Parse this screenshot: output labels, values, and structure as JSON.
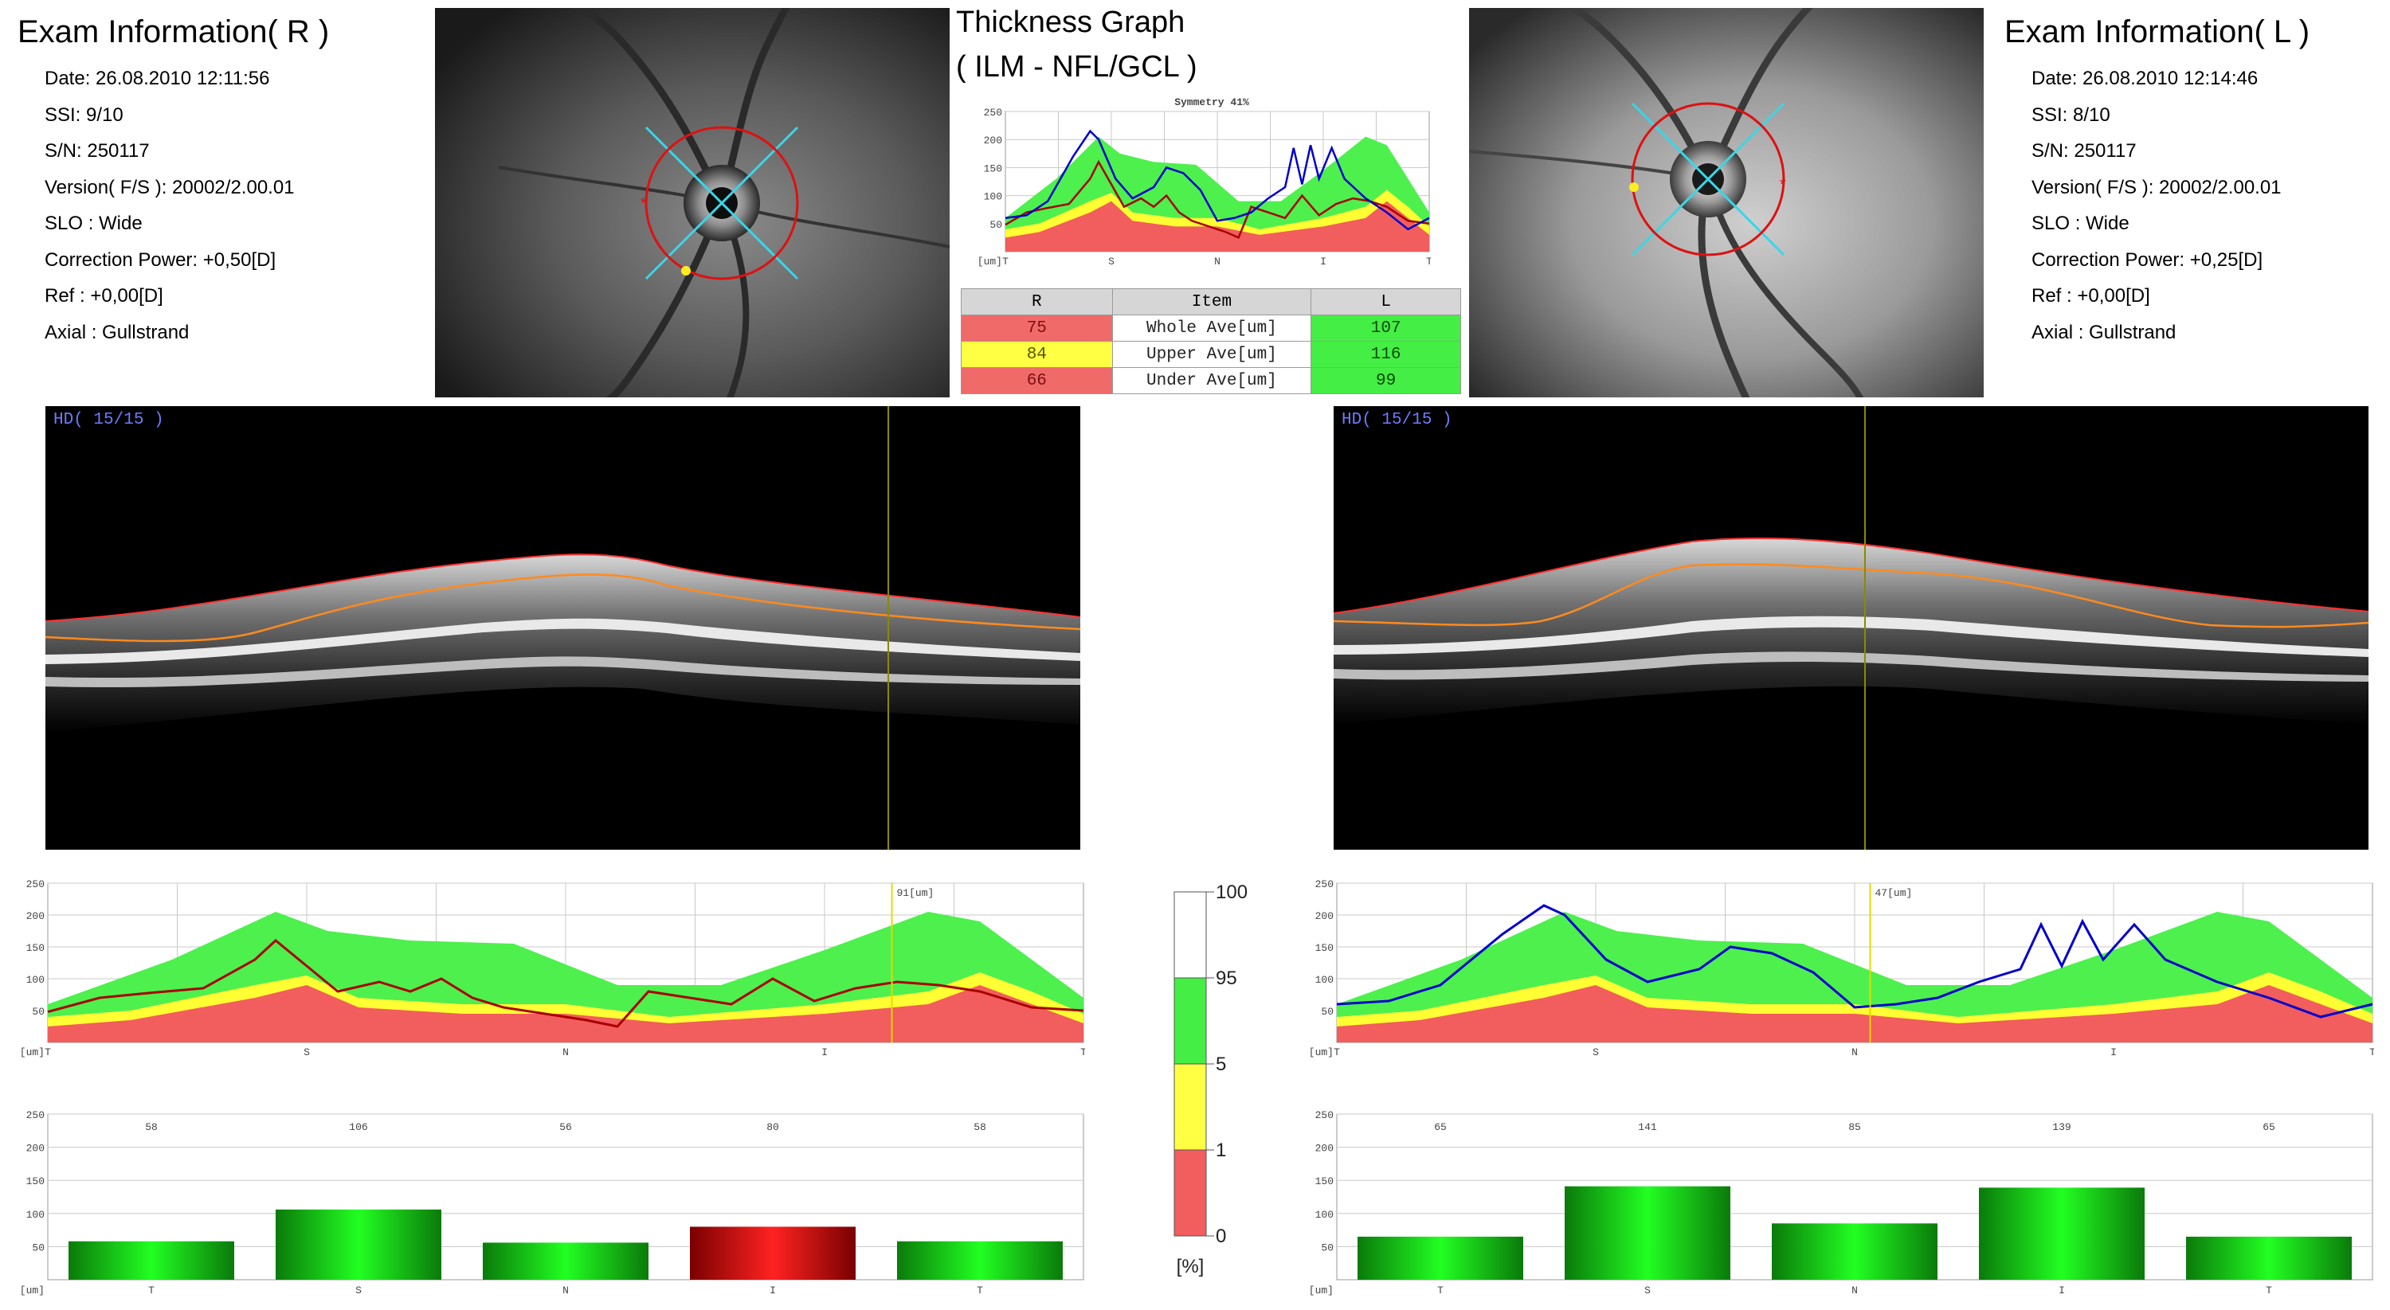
{
  "exam_right": {
    "title": "Exam Information( R )",
    "fields": [
      "Date: 26.08.2010 12:11:56",
      "SSI:  9/10",
      "S/N: 250117",
      "Version( F/S ): 20002/2.00.01",
      "SLO : Wide",
      "Correction Power: +0,50[D]",
      "Ref : +0,00[D]",
      "Axial : Gullstrand"
    ]
  },
  "exam_left": {
    "title": "Exam Information( L )",
    "fields": [
      "Date: 26.08.2010 12:14:46",
      "SSI:  8/10",
      "S/N: 250117",
      "Version( F/S ): 20002/2.00.01",
      "SLO : Wide",
      "Correction Power: +0,25[D]",
      "Ref : +0,00[D]",
      "Axial : Gullstrand"
    ]
  },
  "thickness_graph": {
    "title_line1": "Thickness Graph",
    "title_line2": "( ILM - NFL/GCL )",
    "symmetry": "Symmetry 41%",
    "y_ticks": [
      "250",
      "200",
      "150",
      "100",
      "50"
    ],
    "unit": "[um]",
    "x_ticks": [
      "T",
      "S",
      "N",
      "I",
      "T"
    ]
  },
  "summary_table": {
    "headers": [
      "R",
      "Item",
      "L"
    ],
    "rows": [
      {
        "r": "75",
        "item": "Whole Ave[um]",
        "l": "107",
        "r_color": "red"
      },
      {
        "r": "84",
        "item": "Upper Ave[um]",
        "l": "116",
        "r_color": "yellow"
      },
      {
        "r": "66",
        "item": "Under Ave[um]",
        "l": "99",
        "r_color": "red"
      }
    ]
  },
  "oct_right": {
    "label": "HD( 15/15 )"
  },
  "oct_left": {
    "label": "HD( 15/15 )"
  },
  "profile_right": {
    "y_ticks": [
      "250",
      "200",
      "150",
      "100",
      "50"
    ],
    "unit": "[um]",
    "x_ticks": [
      "T",
      "S",
      "N",
      "I",
      "T"
    ],
    "cursor_value": "91[um]",
    "line_color": "#aa0000"
  },
  "profile_left": {
    "y_ticks": [
      "250",
      "200",
      "150",
      "100",
      "50"
    ],
    "unit": "[um]",
    "x_ticks": [
      "T",
      "S",
      "N",
      "I",
      "T"
    ],
    "cursor_value": "47[um]",
    "line_color": "#0000cc"
  },
  "legend": {
    "labels": [
      "100",
      "95",
      "5",
      "1",
      "0"
    ],
    "unit": "[%]"
  },
  "chart_data": [
    {
      "type": "line",
      "name": "profile_right",
      "x_categories": [
        "T",
        "S",
        "N",
        "I",
        "T"
      ],
      "ylim": [
        0,
        250
      ],
      "xlim": [
        0,
        1
      ],
      "norm_red": [
        [
          0,
          25
        ],
        [
          0.08,
          35
        ],
        [
          0.2,
          70
        ],
        [
          0.25,
          90
        ],
        [
          0.3,
          55
        ],
        [
          0.4,
          45
        ],
        [
          0.5,
          45
        ],
        [
          0.6,
          30
        ],
        [
          0.75,
          45
        ],
        [
          0.85,
          60
        ],
        [
          0.9,
          90
        ],
        [
          0.95,
          60
        ],
        [
          1,
          30
        ]
      ],
      "norm_yellow": [
        [
          0,
          40
        ],
        [
          0.08,
          50
        ],
        [
          0.2,
          90
        ],
        [
          0.25,
          105
        ],
        [
          0.3,
          70
        ],
        [
          0.4,
          60
        ],
        [
          0.5,
          60
        ],
        [
          0.6,
          40
        ],
        [
          0.75,
          60
        ],
        [
          0.85,
          80
        ],
        [
          0.9,
          110
        ],
        [
          0.95,
          80
        ],
        [
          1,
          45
        ]
      ],
      "norm_green": [
        [
          0,
          60
        ],
        [
          0.12,
          130
        ],
        [
          0.22,
          205
        ],
        [
          0.27,
          175
        ],
        [
          0.35,
          160
        ],
        [
          0.45,
          155
        ],
        [
          0.55,
          90
        ],
        [
          0.65,
          90
        ],
        [
          0.75,
          145
        ],
        [
          0.85,
          205
        ],
        [
          0.9,
          190
        ],
        [
          1,
          70
        ]
      ],
      "measured": [
        [
          0,
          48
        ],
        [
          0.05,
          70
        ],
        [
          0.1,
          78
        ],
        [
          0.15,
          85
        ],
        [
          0.2,
          130
        ],
        [
          0.22,
          160
        ],
        [
          0.25,
          120
        ],
        [
          0.28,
          80
        ],
        [
          0.32,
          95
        ],
        [
          0.35,
          80
        ],
        [
          0.38,
          100
        ],
        [
          0.41,
          70
        ],
        [
          0.44,
          55
        ],
        [
          0.48,
          45
        ],
        [
          0.52,
          35
        ],
        [
          0.55,
          25
        ],
        [
          0.58,
          80
        ],
        [
          0.62,
          70
        ],
        [
          0.66,
          60
        ],
        [
          0.7,
          100
        ],
        [
          0.74,
          65
        ],
        [
          0.78,
          85
        ],
        [
          0.82,
          95
        ],
        [
          0.86,
          90
        ],
        [
          0.9,
          80
        ],
        [
          0.95,
          55
        ],
        [
          1,
          50
        ]
      ]
    },
    {
      "type": "line",
      "name": "profile_left",
      "x_categories": [
        "T",
        "S",
        "N",
        "I",
        "T"
      ],
      "ylim": [
        0,
        250
      ],
      "xlim": [
        0,
        1
      ],
      "norm_red": [
        [
          0,
          25
        ],
        [
          0.08,
          35
        ],
        [
          0.2,
          70
        ],
        [
          0.25,
          90
        ],
        [
          0.3,
          55
        ],
        [
          0.4,
          45
        ],
        [
          0.5,
          45
        ],
        [
          0.6,
          30
        ],
        [
          0.75,
          45
        ],
        [
          0.85,
          60
        ],
        [
          0.9,
          90
        ],
        [
          0.95,
          60
        ],
        [
          1,
          30
        ]
      ],
      "norm_yellow": [
        [
          0,
          40
        ],
        [
          0.08,
          50
        ],
        [
          0.2,
          90
        ],
        [
          0.25,
          105
        ],
        [
          0.3,
          70
        ],
        [
          0.4,
          60
        ],
        [
          0.5,
          60
        ],
        [
          0.6,
          40
        ],
        [
          0.75,
          60
        ],
        [
          0.85,
          80
        ],
        [
          0.9,
          110
        ],
        [
          0.95,
          80
        ],
        [
          1,
          45
        ]
      ],
      "norm_green": [
        [
          0,
          60
        ],
        [
          0.12,
          130
        ],
        [
          0.22,
          205
        ],
        [
          0.27,
          175
        ],
        [
          0.35,
          160
        ],
        [
          0.45,
          155
        ],
        [
          0.55,
          90
        ],
        [
          0.65,
          90
        ],
        [
          0.75,
          145
        ],
        [
          0.85,
          205
        ],
        [
          0.9,
          190
        ],
        [
          1,
          70
        ]
      ],
      "measured": [
        [
          0,
          60
        ],
        [
          0.05,
          65
        ],
        [
          0.1,
          90
        ],
        [
          0.16,
          170
        ],
        [
          0.2,
          215
        ],
        [
          0.22,
          200
        ],
        [
          0.26,
          130
        ],
        [
          0.3,
          95
        ],
        [
          0.35,
          115
        ],
        [
          0.38,
          150
        ],
        [
          0.42,
          140
        ],
        [
          0.46,
          110
        ],
        [
          0.5,
          55
        ],
        [
          0.54,
          60
        ],
        [
          0.58,
          70
        ],
        [
          0.62,
          95
        ],
        [
          0.66,
          115
        ],
        [
          0.68,
          185
        ],
        [
          0.7,
          120
        ],
        [
          0.72,
          190
        ],
        [
          0.74,
          130
        ],
        [
          0.77,
          185
        ],
        [
          0.8,
          130
        ],
        [
          0.85,
          95
        ],
        [
          0.9,
          70
        ],
        [
          0.95,
          40
        ],
        [
          1,
          60
        ]
      ]
    },
    {
      "type": "line",
      "name": "thickness_graph",
      "x_categories": [
        "T",
        "S",
        "N",
        "I",
        "T"
      ],
      "ylim": [
        0,
        250
      ],
      "xlim": [
        0,
        1
      ],
      "norm_red": [
        [
          0,
          25
        ],
        [
          0.08,
          35
        ],
        [
          0.2,
          70
        ],
        [
          0.25,
          90
        ],
        [
          0.3,
          55
        ],
        [
          0.4,
          45
        ],
        [
          0.5,
          45
        ],
        [
          0.6,
          30
        ],
        [
          0.75,
          45
        ],
        [
          0.85,
          60
        ],
        [
          0.9,
          90
        ],
        [
          0.95,
          60
        ],
        [
          1,
          30
        ]
      ],
      "norm_yellow": [
        [
          0,
          40
        ],
        [
          0.08,
          50
        ],
        [
          0.2,
          90
        ],
        [
          0.25,
          105
        ],
        [
          0.3,
          70
        ],
        [
          0.4,
          60
        ],
        [
          0.5,
          60
        ],
        [
          0.6,
          40
        ],
        [
          0.75,
          60
        ],
        [
          0.85,
          80
        ],
        [
          0.9,
          110
        ],
        [
          0.95,
          80
        ],
        [
          1,
          45
        ]
      ],
      "norm_green": [
        [
          0,
          60
        ],
        [
          0.12,
          130
        ],
        [
          0.22,
          205
        ],
        [
          0.27,
          175
        ],
        [
          0.35,
          160
        ],
        [
          0.45,
          155
        ],
        [
          0.55,
          90
        ],
        [
          0.65,
          90
        ],
        [
          0.75,
          145
        ],
        [
          0.85,
          205
        ],
        [
          0.9,
          190
        ],
        [
          1,
          70
        ]
      ],
      "series": [
        {
          "eye": "R",
          "color": "#aa0000",
          "points": [
            [
              0,
              48
            ],
            [
              0.05,
              70
            ],
            [
              0.1,
              78
            ],
            [
              0.15,
              85
            ],
            [
              0.2,
              130
            ],
            [
              0.22,
              160
            ],
            [
              0.25,
              120
            ],
            [
              0.28,
              80
            ],
            [
              0.32,
              95
            ],
            [
              0.35,
              80
            ],
            [
              0.38,
              100
            ],
            [
              0.41,
              70
            ],
            [
              0.44,
              55
            ],
            [
              0.48,
              45
            ],
            [
              0.52,
              35
            ],
            [
              0.55,
              25
            ],
            [
              0.58,
              80
            ],
            [
              0.62,
              70
            ],
            [
              0.66,
              60
            ],
            [
              0.7,
              100
            ],
            [
              0.74,
              65
            ],
            [
              0.78,
              85
            ],
            [
              0.82,
              95
            ],
            [
              0.86,
              90
            ],
            [
              0.9,
              80
            ],
            [
              0.95,
              55
            ],
            [
              1,
              50
            ]
          ]
        },
        {
          "eye": "L",
          "color": "#0000cc",
          "points": [
            [
              0,
              60
            ],
            [
              0.05,
              65
            ],
            [
              0.1,
              90
            ],
            [
              0.16,
              170
            ],
            [
              0.2,
              215
            ],
            [
              0.22,
              200
            ],
            [
              0.26,
              130
            ],
            [
              0.3,
              95
            ],
            [
              0.35,
              115
            ],
            [
              0.38,
              150
            ],
            [
              0.42,
              140
            ],
            [
              0.46,
              110
            ],
            [
              0.5,
              55
            ],
            [
              0.54,
              60
            ],
            [
              0.58,
              70
            ],
            [
              0.62,
              95
            ],
            [
              0.66,
              115
            ],
            [
              0.68,
              185
            ],
            [
              0.7,
              120
            ],
            [
              0.72,
              190
            ],
            [
              0.74,
              130
            ],
            [
              0.77,
              185
            ],
            [
              0.8,
              130
            ],
            [
              0.85,
              95
            ],
            [
              0.9,
              70
            ],
            [
              0.95,
              40
            ],
            [
              1,
              60
            ]
          ]
        }
      ]
    },
    {
      "type": "bar",
      "name": "sector_right",
      "categories": [
        "T",
        "S",
        "N",
        "I",
        "T"
      ],
      "values": [
        58,
        106,
        56,
        80,
        58
      ],
      "value_labels": [
        "58",
        "106",
        "56",
        "80",
        "58"
      ],
      "colors": [
        "green",
        "green",
        "green",
        "red",
        "green"
      ],
      "y_ticks": [
        "250",
        "200",
        "150",
        "100",
        "50"
      ],
      "unit": "[um]",
      "ylim": [
        0,
        250
      ]
    },
    {
      "type": "bar",
      "name": "sector_left",
      "categories": [
        "T",
        "S",
        "N",
        "I",
        "T"
      ],
      "values": [
        65,
        141,
        85,
        139,
        65
      ],
      "value_labels": [
        "65",
        "141",
        "85",
        "139",
        "65"
      ],
      "colors": [
        "green",
        "green",
        "green",
        "green",
        "green"
      ],
      "y_ticks": [
        "250",
        "200",
        "150",
        "100",
        "50"
      ],
      "unit": "[um]",
      "ylim": [
        0,
        250
      ]
    }
  ]
}
